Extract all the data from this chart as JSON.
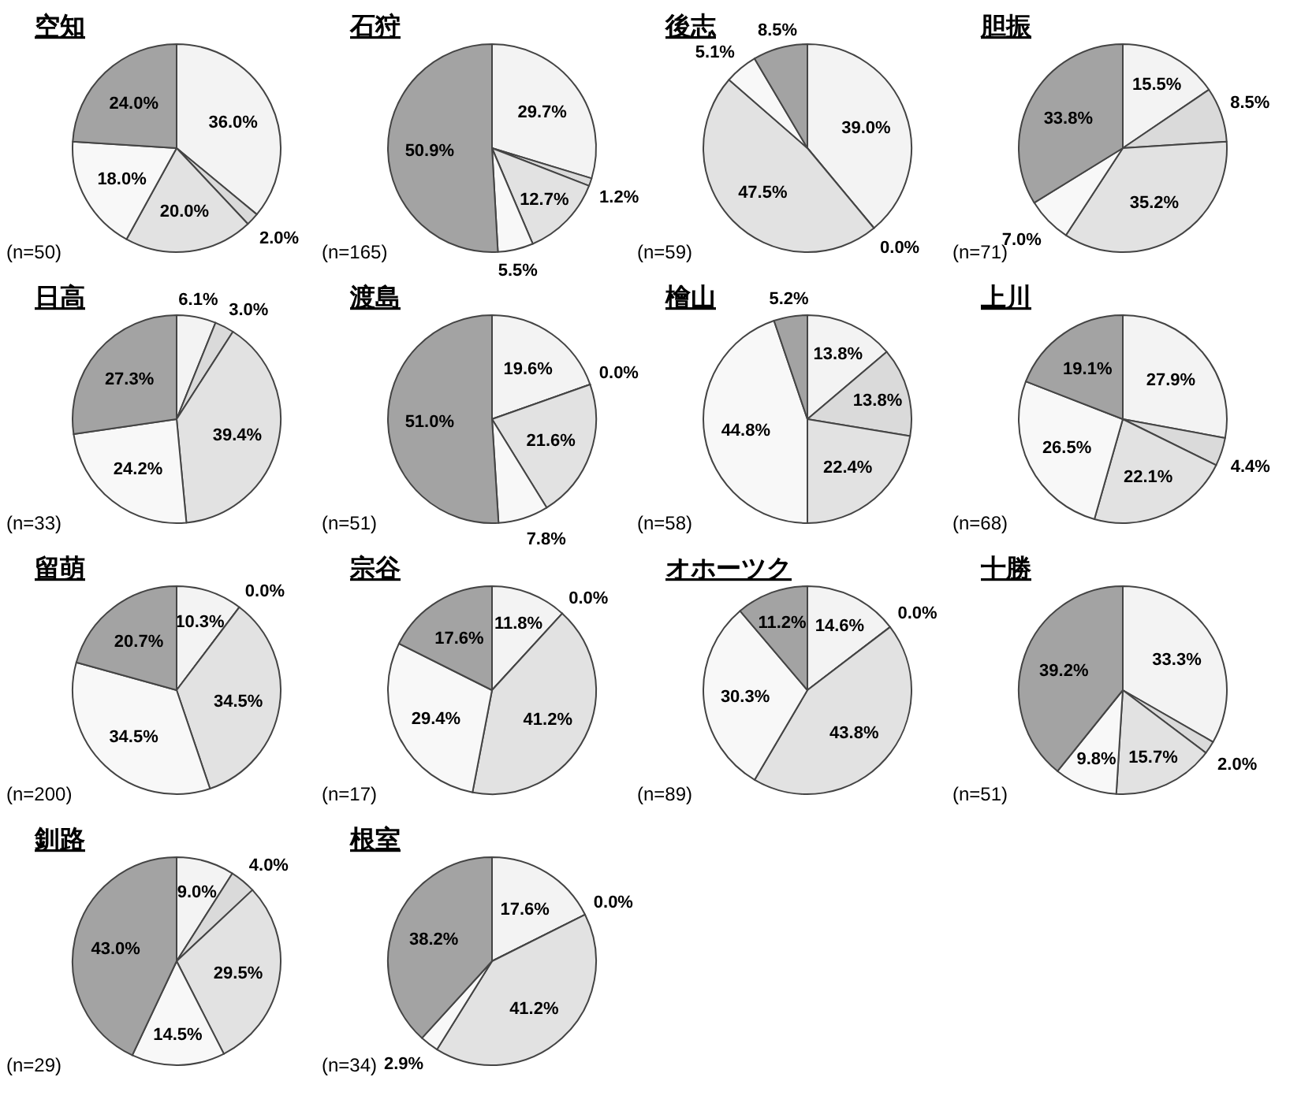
{
  "chart_data": [
    {
      "type": "pie",
      "title": "空知",
      "annotations": [
        "(n=50)"
      ],
      "categories": [
        null,
        null,
        null,
        null,
        null
      ],
      "values": [
        36.0,
        2.0,
        20.0,
        18.0,
        24.0
      ],
      "value_labels": [
        "36.0%",
        "2.0%",
        "20.0%",
        "18.0%",
        "24.0%"
      ],
      "colors": [
        "#f3f3f3",
        "#dadada",
        "#e2e2e2",
        "#f8f8f8",
        "#a3a3a3"
      ]
    },
    {
      "type": "pie",
      "title": "石狩",
      "annotations": [
        "(n=165)"
      ],
      "categories": [
        null,
        null,
        null,
        null,
        null
      ],
      "values": [
        29.7,
        1.2,
        12.7,
        5.5,
        50.9
      ],
      "value_labels": [
        "29.7%",
        "1.2%",
        "12.7%",
        "5.5%",
        "50.9%"
      ],
      "colors": [
        "#f3f3f3",
        "#dadada",
        "#e2e2e2",
        "#f8f8f8",
        "#a3a3a3"
      ]
    },
    {
      "type": "pie",
      "title": "後志",
      "annotations": [
        "(n=59)"
      ],
      "categories": [
        null,
        null,
        null,
        null,
        null
      ],
      "values": [
        39.0,
        0.0,
        47.5,
        5.1,
        8.5
      ],
      "value_labels": [
        "39.0%",
        "0.0%",
        "47.5%",
        "5.1%",
        "8.5%"
      ],
      "colors": [
        "#f3f3f3",
        "#dadada",
        "#e2e2e2",
        "#f8f8f8",
        "#a3a3a3"
      ]
    },
    {
      "type": "pie",
      "title": "胆振",
      "annotations": [
        "(n=71)"
      ],
      "categories": [
        null,
        null,
        null,
        null,
        null
      ],
      "values": [
        15.5,
        8.5,
        35.2,
        7.0,
        33.8
      ],
      "value_labels": [
        "15.5%",
        "8.5%",
        "35.2%",
        "7.0%",
        "33.8%"
      ],
      "colors": [
        "#f3f3f3",
        "#dadada",
        "#e2e2e2",
        "#f8f8f8",
        "#a3a3a3"
      ]
    },
    {
      "type": "pie",
      "title": "日高",
      "annotations": [
        "(n=33)"
      ],
      "categories": [
        null,
        null,
        null,
        null,
        null
      ],
      "values": [
        6.1,
        3.0,
        39.4,
        24.2,
        27.3
      ],
      "value_labels": [
        "6.1%",
        "3.0%",
        "39.4%",
        "24.2%",
        "27.3%"
      ],
      "colors": [
        "#f3f3f3",
        "#dadada",
        "#e2e2e2",
        "#f8f8f8",
        "#a3a3a3"
      ]
    },
    {
      "type": "pie",
      "title": "渡島",
      "annotations": [
        "(n=51)"
      ],
      "categories": [
        null,
        null,
        null,
        null,
        null
      ],
      "values": [
        19.6,
        0.0,
        21.6,
        7.8,
        51.0
      ],
      "value_labels": [
        "19.6%",
        "0.0%",
        "21.6%",
        "7.8%",
        "51.0%"
      ],
      "colors": [
        "#f3f3f3",
        "#dadada",
        "#e2e2e2",
        "#f8f8f8",
        "#a3a3a3"
      ]
    },
    {
      "type": "pie",
      "title": "檜山",
      "annotations": [
        "(n=58)"
      ],
      "categories": [
        null,
        null,
        null,
        null,
        null
      ],
      "values": [
        13.8,
        13.8,
        22.4,
        44.8,
        5.2
      ],
      "value_labels": [
        "13.8%",
        "13.8%",
        "22.4%",
        "44.8%",
        "5.2%"
      ],
      "colors": [
        "#f3f3f3",
        "#dadada",
        "#e2e2e2",
        "#f8f8f8",
        "#a3a3a3"
      ]
    },
    {
      "type": "pie",
      "title": "上川",
      "annotations": [
        "(n=68)"
      ],
      "categories": [
        null,
        null,
        null,
        null,
        null
      ],
      "values": [
        27.9,
        4.4,
        22.1,
        26.5,
        19.1
      ],
      "value_labels": [
        "27.9%",
        "4.4%",
        "22.1%",
        "26.5%",
        "19.1%"
      ],
      "colors": [
        "#f3f3f3",
        "#dadada",
        "#e2e2e2",
        "#f8f8f8",
        "#a3a3a3"
      ]
    },
    {
      "type": "pie",
      "title": "留萌",
      "annotations": [
        "(n=200)"
      ],
      "categories": [
        null,
        null,
        null,
        null,
        null
      ],
      "values": [
        10.3,
        0.0,
        34.5,
        34.5,
        20.7
      ],
      "value_labels": [
        "10.3%",
        "0.0%",
        "34.5%",
        "34.5%",
        "20.7%"
      ],
      "colors": [
        "#f3f3f3",
        "#dadada",
        "#e2e2e2",
        "#f8f8f8",
        "#a3a3a3"
      ]
    },
    {
      "type": "pie",
      "title": "宗谷",
      "annotations": [
        "(n=17)"
      ],
      "categories": [
        null,
        null,
        null,
        null,
        null
      ],
      "values": [
        11.8,
        0.0,
        41.2,
        29.4,
        17.6
      ],
      "value_labels": [
        "11.8%",
        "0.0%",
        "41.2%",
        "29.4%",
        "17.6%"
      ],
      "colors": [
        "#f3f3f3",
        "#dadada",
        "#e2e2e2",
        "#f8f8f8",
        "#a3a3a3"
      ]
    },
    {
      "type": "pie",
      "title": "オホーツク",
      "annotations": [
        "(n=89)"
      ],
      "categories": [
        null,
        null,
        null,
        null,
        null
      ],
      "values": [
        14.6,
        0.0,
        43.8,
        30.3,
        11.2
      ],
      "value_labels": [
        "14.6%",
        "0.0%",
        "43.8%",
        "30.3%",
        "11.2%"
      ],
      "colors": [
        "#f3f3f3",
        "#dadada",
        "#e2e2e2",
        "#f8f8f8",
        "#a3a3a3"
      ]
    },
    {
      "type": "pie",
      "title": "十勝",
      "annotations": [
        "(n=51)"
      ],
      "categories": [
        null,
        null,
        null,
        null,
        null
      ],
      "values": [
        33.3,
        2.0,
        15.7,
        9.8,
        39.2
      ],
      "value_labels": [
        "33.3%",
        "2.0%",
        "15.7%",
        "9.8%",
        "39.2%"
      ],
      "colors": [
        "#f3f3f3",
        "#dadada",
        "#e2e2e2",
        "#f8f8f8",
        "#a3a3a3"
      ]
    },
    {
      "type": "pie",
      "title": "釧路",
      "annotations": [
        "(n=29)"
      ],
      "categories": [
        null,
        null,
        null,
        null,
        null
      ],
      "values": [
        9.0,
        4.0,
        29.5,
        14.5,
        43.0
      ],
      "value_labels": [
        "9.0%",
        "4.0%",
        "29.5%",
        "14.5%",
        "43.0%"
      ],
      "colors": [
        "#f3f3f3",
        "#dadada",
        "#e2e2e2",
        "#f8f8f8",
        "#a3a3a3"
      ]
    },
    {
      "type": "pie",
      "title": "根室",
      "annotations": [
        "(n=34)"
      ],
      "categories": [
        null,
        null,
        null,
        null,
        null
      ],
      "values": [
        17.6,
        0.0,
        41.2,
        2.9,
        38.2
      ],
      "value_labels": [
        "17.6%",
        "0.0%",
        "41.2%",
        "2.9%",
        "38.2%"
      ],
      "colors": [
        "#f3f3f3",
        "#dadada",
        "#e2e2e2",
        "#f8f8f8",
        "#a3a3a3"
      ]
    }
  ]
}
